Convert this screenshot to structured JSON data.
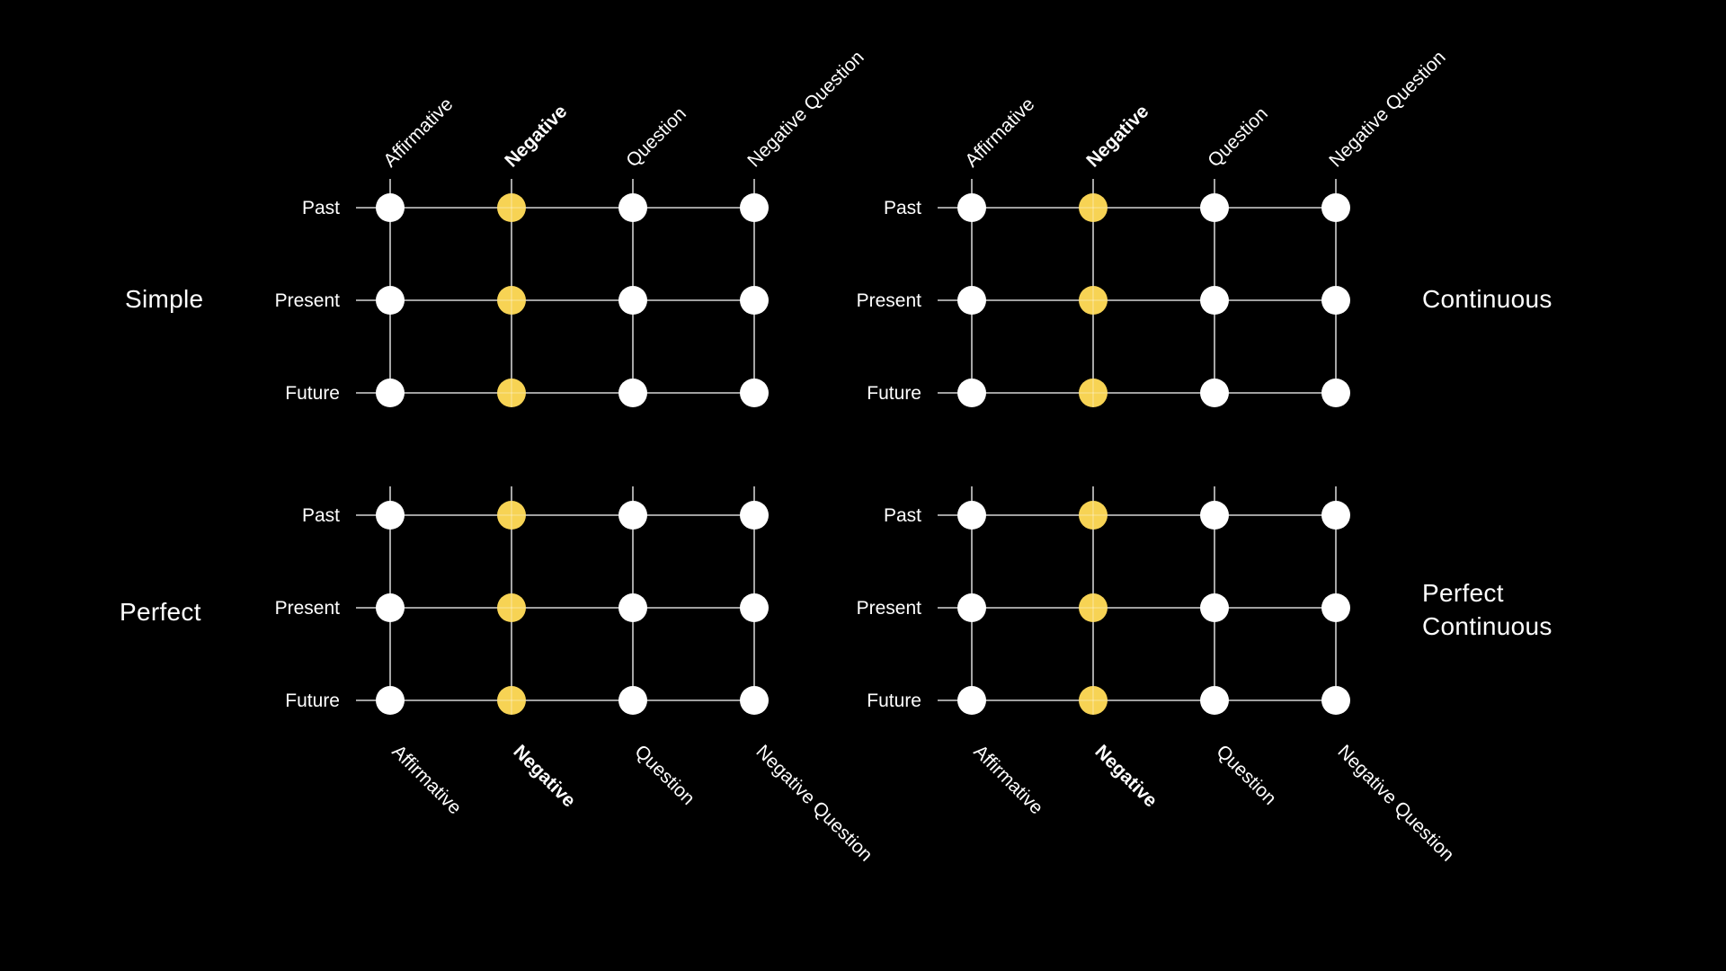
{
  "colors": {
    "background": "#000000",
    "line": "#ffffff",
    "node_default": "#ffffff",
    "node_highlight": "#f7d354",
    "text": "#ffffff"
  },
  "highlighted_column": "Negative",
  "column_labels": [
    "Affirmative",
    "Negative",
    "Question",
    "Negative Question"
  ],
  "row_labels": [
    "Past",
    "Present",
    "Future"
  ],
  "groups": [
    {
      "id": "simple",
      "title": [
        "Simple"
      ]
    },
    {
      "id": "continuous",
      "title": [
        "Continuous"
      ]
    },
    {
      "id": "perfect",
      "title": [
        "Perfect"
      ]
    },
    {
      "id": "perfect-continuous",
      "title": [
        "Perfect",
        "Continuous"
      ]
    }
  ]
}
